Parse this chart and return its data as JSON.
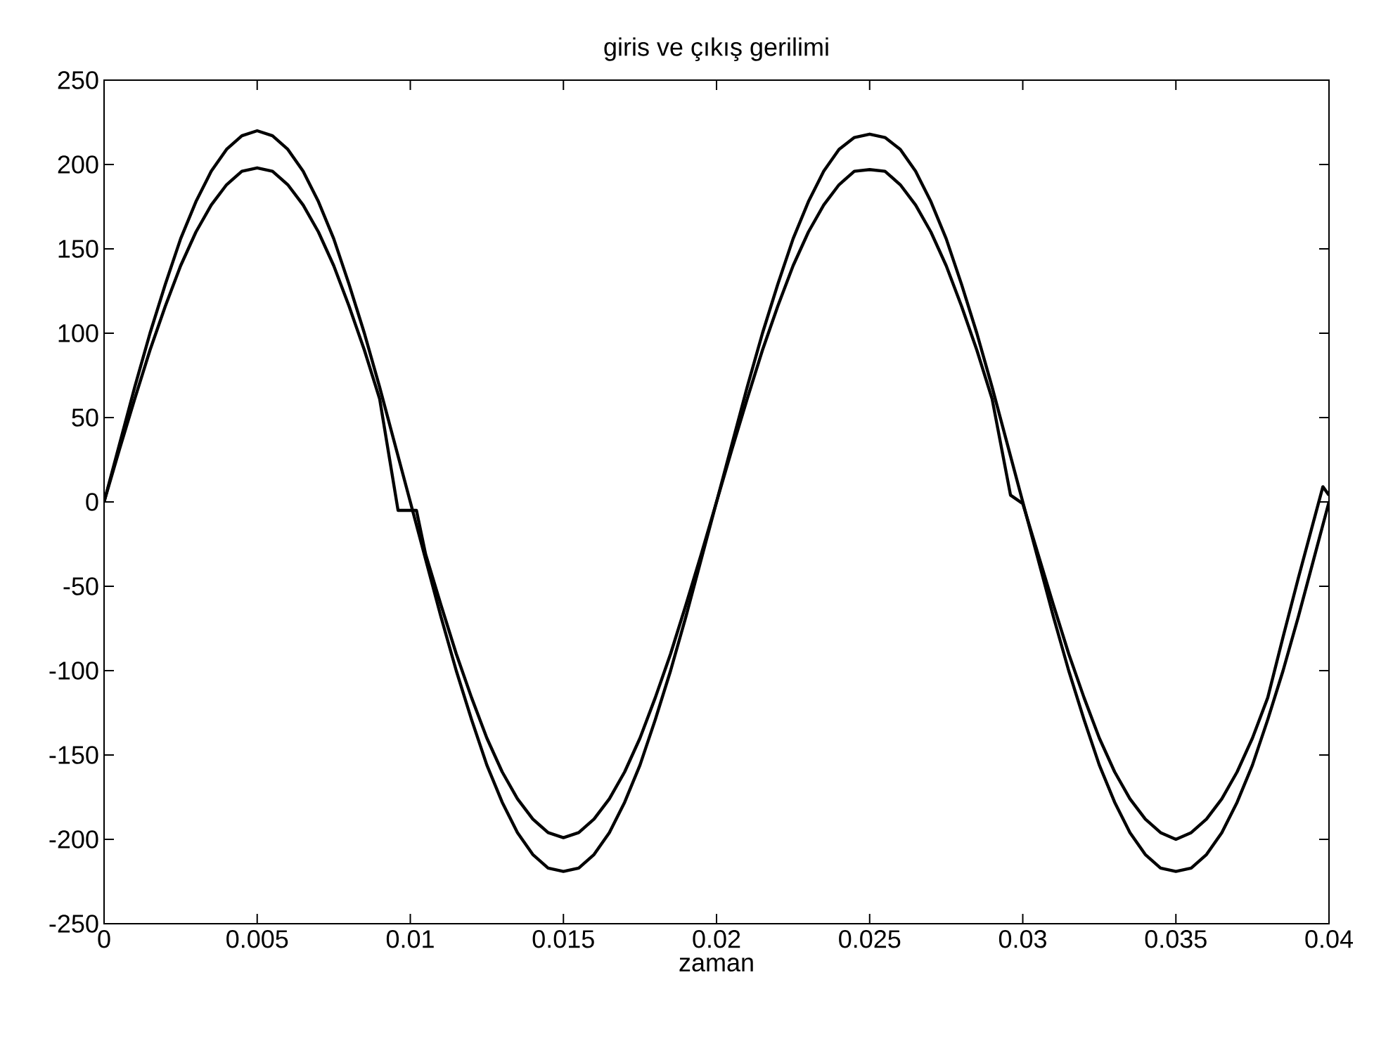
{
  "chart_data": {
    "type": "line",
    "title": "giris ve çıkış gerilimi",
    "xlabel": "zaman",
    "xlim": [
      0,
      0.04
    ],
    "ylim": [
      -250,
      250
    ],
    "xticks": [
      0,
      0.005,
      0.01,
      0.015,
      0.02,
      0.025,
      0.03,
      0.035,
      0.04
    ],
    "yticks": [
      -250,
      -200,
      -150,
      -100,
      -50,
      0,
      50,
      100,
      150,
      200,
      250
    ],
    "series": [
      {
        "color": "#000000",
        "x": [
          0,
          0.0005,
          0.001,
          0.0015,
          0.002,
          0.0025,
          0.003,
          0.0035,
          0.004,
          0.0045,
          0.005,
          0.0055,
          0.006,
          0.0065,
          0.007,
          0.0075,
          0.008,
          0.0085,
          0.009,
          0.0095,
          0.01,
          0.0105,
          0.011,
          0.0115,
          0.012,
          0.0125,
          0.013,
          0.0135,
          0.014,
          0.0145,
          0.015,
          0.0155,
          0.016,
          0.0165,
          0.017,
          0.0175,
          0.018,
          0.0185,
          0.019,
          0.0195,
          0.02,
          0.0205,
          0.021,
          0.0215,
          0.022,
          0.0225,
          0.023,
          0.0235,
          0.024,
          0.0245,
          0.025,
          0.0255,
          0.026,
          0.0265,
          0.027,
          0.0275,
          0.028,
          0.0285,
          0.029,
          0.0295,
          0.03,
          0.0305,
          0.031,
          0.0315,
          0.032,
          0.0325,
          0.033,
          0.0335,
          0.034,
          0.0345,
          0.035,
          0.0355,
          0.036,
          0.0365,
          0.037,
          0.0375,
          0.038,
          0.0385,
          0.039,
          0.0395,
          0.04
        ],
        "values": [
          0,
          34,
          68,
          100,
          129,
          156,
          178,
          196,
          209,
          217,
          220,
          217,
          209,
          196,
          178,
          156,
          129,
          100,
          68,
          34,
          0,
          -34,
          -68,
          -100,
          -129,
          -156,
          -178,
          -196,
          -209,
          -217,
          -219,
          -217,
          -209,
          -196,
          -178,
          -156,
          -129,
          -100,
          -68,
          -34,
          0,
          34,
          68,
          100,
          129,
          156,
          178,
          196,
          209,
          216,
          218,
          216,
          209,
          196,
          178,
          156,
          129,
          100,
          68,
          34,
          0,
          -34,
          -68,
          -100,
          -129,
          -156,
          -178,
          -196,
          -209,
          -217,
          -219,
          -217,
          -209,
          -196,
          -178,
          -156,
          -129,
          -100,
          -68,
          -34,
          0
        ]
      },
      {
        "color": "#000000",
        "x": [
          0,
          0.0005,
          0.001,
          0.0015,
          0.002,
          0.0025,
          0.003,
          0.0035,
          0.004,
          0.0045,
          0.005,
          0.0055,
          0.006,
          0.0065,
          0.007,
          0.0075,
          0.008,
          0.0085,
          0.009,
          0.0096,
          0.0102,
          0.0105,
          0.011,
          0.0115,
          0.012,
          0.0125,
          0.013,
          0.0135,
          0.014,
          0.0145,
          0.015,
          0.0155,
          0.016,
          0.0165,
          0.017,
          0.0175,
          0.018,
          0.0185,
          0.019,
          0.0195,
          0.02,
          0.0205,
          0.021,
          0.0215,
          0.022,
          0.0225,
          0.023,
          0.0235,
          0.024,
          0.0245,
          0.025,
          0.0255,
          0.026,
          0.0265,
          0.027,
          0.0275,
          0.028,
          0.0285,
          0.029,
          0.0296,
          0.03,
          0.0305,
          0.031,
          0.0315,
          0.032,
          0.0325,
          0.033,
          0.0335,
          0.034,
          0.0345,
          0.035,
          0.0355,
          0.036,
          0.0365,
          0.037,
          0.0375,
          0.038,
          0.0385,
          0.039,
          0.0398,
          0.04
        ],
        "values": [
          0,
          31,
          61,
          90,
          116,
          140,
          160,
          176,
          188,
          196,
          198,
          196,
          188,
          176,
          160,
          140,
          116,
          90,
          61,
          -5,
          -5,
          -31,
          -61,
          -90,
          -116,
          -140,
          -160,
          -176,
          -188,
          -196,
          -199,
          -196,
          -188,
          -176,
          -160,
          -140,
          -116,
          -90,
          -61,
          -31,
          0,
          31,
          61,
          90,
          116,
          140,
          160,
          176,
          188,
          196,
          197,
          196,
          188,
          176,
          160,
          140,
          116,
          90,
          61,
          4,
          -1,
          -31,
          -61,
          -90,
          -116,
          -140,
          -160,
          -176,
          -188,
          -196,
          -200,
          -196,
          -188,
          -176,
          -160,
          -140,
          -116,
          -80,
          -45,
          9,
          4
        ]
      }
    ]
  }
}
